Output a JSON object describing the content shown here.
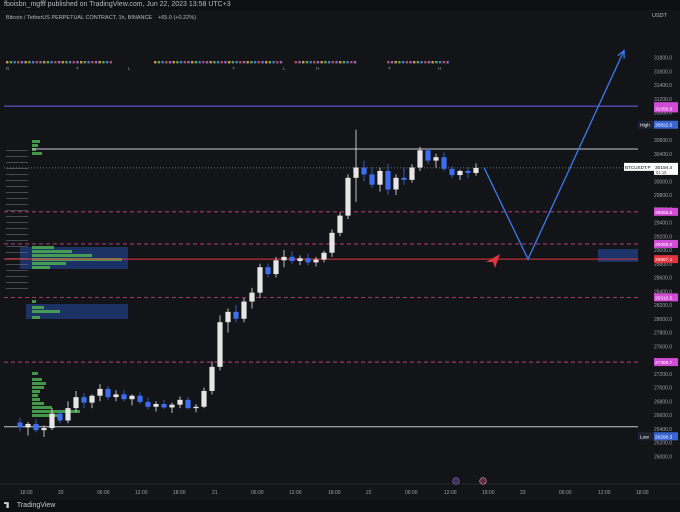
{
  "publish_line": "fboisbn_mgfff published on TradingView.com, Jun 22, 2023 13:58 UTC+3",
  "symbol_line": "Bitcoin / TetherUS PERPETUAL CONTRACT, 1h, BINANCE",
  "change_text": "+65.0 (+0.22%)",
  "footer_brand": "TradingView",
  "currency": "USDT",
  "colors": {
    "background": "#131417",
    "up": "#e6e6e6",
    "down": "#3b6ff0",
    "accent_arrow": "#3a7bf5",
    "red_line": "#e0353e",
    "magenta": "#d24bd6",
    "volume_profile": "#4caf50",
    "zone": "#1f3a78"
  },
  "chart_data": {
    "type": "candlestick",
    "symbol": "Bitcoin / TetherUS PERPETUAL CONTRACT",
    "interval": "1h",
    "exchange": "BINANCE",
    "ylim": [
      25800,
      32200
    ],
    "y_ticks": [
      26000,
      26200,
      26400,
      26600,
      26800,
      27000,
      27200,
      27400,
      27600,
      27800,
      28000,
      28200,
      28400,
      28600,
      28800,
      29000,
      29200,
      29400,
      29600,
      29800,
      30000,
      30200,
      30400,
      30600,
      30800,
      31000,
      31200,
      31400,
      31600,
      31800
    ],
    "x_ticks": [
      "18:00",
      "20",
      "06:00",
      "12:00",
      "18:00",
      "21",
      "06:00",
      "12:00",
      "18:00",
      "22",
      "06:00",
      "12:00",
      "18:00",
      "23",
      "06:00",
      "12:00",
      "18:00"
    ],
    "candles": [
      {
        "t": 0,
        "o": 26490,
        "h": 26560,
        "l": 26360,
        "c": 26420
      },
      {
        "t": 1,
        "o": 26420,
        "h": 26500,
        "l": 26300,
        "c": 26470
      },
      {
        "t": 2,
        "o": 26470,
        "h": 26540,
        "l": 26350,
        "c": 26380
      },
      {
        "t": 3,
        "o": 26380,
        "h": 26450,
        "l": 26280,
        "c": 26410
      },
      {
        "t": 4,
        "o": 26410,
        "h": 26700,
        "l": 26380,
        "c": 26620
      },
      {
        "t": 5,
        "o": 26620,
        "h": 26660,
        "l": 26480,
        "c": 26520
      },
      {
        "t": 6,
        "o": 26520,
        "h": 26800,
        "l": 26480,
        "c": 26700
      },
      {
        "t": 7,
        "o": 26700,
        "h": 26950,
        "l": 26640,
        "c": 26860
      },
      {
        "t": 8,
        "o": 26860,
        "h": 26920,
        "l": 26700,
        "c": 26780
      },
      {
        "t": 9,
        "o": 26780,
        "h": 26900,
        "l": 26700,
        "c": 26880
      },
      {
        "t": 10,
        "o": 26880,
        "h": 27050,
        "l": 26800,
        "c": 26980
      },
      {
        "t": 11,
        "o": 26980,
        "h": 27020,
        "l": 26820,
        "c": 26860
      },
      {
        "t": 12,
        "o": 26860,
        "h": 26960,
        "l": 26800,
        "c": 26900
      },
      {
        "t": 13,
        "o": 26900,
        "h": 26960,
        "l": 26800,
        "c": 26830
      },
      {
        "t": 14,
        "o": 26830,
        "h": 26900,
        "l": 26740,
        "c": 26880
      },
      {
        "t": 15,
        "o": 26880,
        "h": 26930,
        "l": 26760,
        "c": 26790
      },
      {
        "t": 16,
        "o": 26790,
        "h": 26850,
        "l": 26680,
        "c": 26720
      },
      {
        "t": 17,
        "o": 26720,
        "h": 26800,
        "l": 26650,
        "c": 26760
      },
      {
        "t": 18,
        "o": 26760,
        "h": 26820,
        "l": 26690,
        "c": 26710
      },
      {
        "t": 19,
        "o": 26710,
        "h": 26780,
        "l": 26630,
        "c": 26750
      },
      {
        "t": 20,
        "o": 26750,
        "h": 26870,
        "l": 26700,
        "c": 26820
      },
      {
        "t": 21,
        "o": 26820,
        "h": 26860,
        "l": 26680,
        "c": 26700
      },
      {
        "t": 22,
        "o": 26700,
        "h": 26760,
        "l": 26640,
        "c": 26720
      },
      {
        "t": 23,
        "o": 26720,
        "h": 27000,
        "l": 26700,
        "c": 26950
      },
      {
        "t": 24,
        "o": 26950,
        "h": 27380,
        "l": 26900,
        "c": 27300
      },
      {
        "t": 25,
        "o": 27300,
        "h": 28050,
        "l": 27250,
        "c": 27950
      },
      {
        "t": 26,
        "o": 27950,
        "h": 28150,
        "l": 27800,
        "c": 28100
      },
      {
        "t": 27,
        "o": 28100,
        "h": 28200,
        "l": 27950,
        "c": 28000
      },
      {
        "t": 28,
        "o": 28000,
        "h": 28300,
        "l": 27950,
        "c": 28250
      },
      {
        "t": 29,
        "o": 28250,
        "h": 28450,
        "l": 28150,
        "c": 28380
      },
      {
        "t": 30,
        "o": 28380,
        "h": 28800,
        "l": 28300,
        "c": 28750
      },
      {
        "t": 31,
        "o": 28750,
        "h": 28800,
        "l": 28600,
        "c": 28650
      },
      {
        "t": 32,
        "o": 28650,
        "h": 28900,
        "l": 28600,
        "c": 28850
      },
      {
        "t": 33,
        "o": 28850,
        "h": 29000,
        "l": 28750,
        "c": 28900
      },
      {
        "t": 34,
        "o": 28900,
        "h": 28980,
        "l": 28800,
        "c": 28840
      },
      {
        "t": 35,
        "o": 28840,
        "h": 28920,
        "l": 28780,
        "c": 28880
      },
      {
        "t": 36,
        "o": 28880,
        "h": 28950,
        "l": 28780,
        "c": 28820
      },
      {
        "t": 37,
        "o": 28820,
        "h": 28900,
        "l": 28760,
        "c": 28860
      },
      {
        "t": 38,
        "o": 28860,
        "h": 28990,
        "l": 28820,
        "c": 28960
      },
      {
        "t": 39,
        "o": 28960,
        "h": 29300,
        "l": 28900,
        "c": 29250
      },
      {
        "t": 40,
        "o": 29250,
        "h": 29550,
        "l": 29200,
        "c": 29500
      },
      {
        "t": 41,
        "o": 29500,
        "h": 30100,
        "l": 29450,
        "c": 30050
      },
      {
        "t": 42,
        "o": 30050,
        "h": 30750,
        "l": 29700,
        "c": 30200
      },
      {
        "t": 43,
        "o": 30200,
        "h": 30300,
        "l": 30000,
        "c": 30100
      },
      {
        "t": 44,
        "o": 30100,
        "h": 30200,
        "l": 29900,
        "c": 29950
      },
      {
        "t": 45,
        "o": 29950,
        "h": 30200,
        "l": 29850,
        "c": 30150
      },
      {
        "t": 46,
        "o": 30150,
        "h": 30250,
        "l": 29800,
        "c": 29880
      },
      {
        "t": 47,
        "o": 29880,
        "h": 30100,
        "l": 29800,
        "c": 30050
      },
      {
        "t": 48,
        "o": 30050,
        "h": 30200,
        "l": 29950,
        "c": 30020
      },
      {
        "t": 49,
        "o": 30020,
        "h": 30250,
        "l": 29980,
        "c": 30200
      },
      {
        "t": 50,
        "o": 30200,
        "h": 30500,
        "l": 30150,
        "c": 30450
      },
      {
        "t": 51,
        "o": 30450,
        "h": 30480,
        "l": 30250,
        "c": 30300
      },
      {
        "t": 52,
        "o": 30300,
        "h": 30400,
        "l": 30200,
        "c": 30350
      },
      {
        "t": 53,
        "o": 30350,
        "h": 30420,
        "l": 30150,
        "c": 30180
      },
      {
        "t": 54,
        "o": 30180,
        "h": 30220,
        "l": 30050,
        "c": 30090
      },
      {
        "t": 55,
        "o": 30090,
        "h": 30170,
        "l": 30020,
        "c": 30150
      },
      {
        "t": 56,
        "o": 30150,
        "h": 30200,
        "l": 30050,
        "c": 30120
      },
      {
        "t": 57,
        "o": 30120,
        "h": 30260,
        "l": 30080,
        "c": 30194
      }
    ],
    "price_labels": [
      {
        "label": "31091.9",
        "value": 31091.9,
        "color": "#d24bd6"
      },
      {
        "label": "31059.0",
        "value": 31059.0,
        "color": "#d24bd6"
      },
      {
        "label": "High",
        "value": 30822.0,
        "color": "#3a66d4",
        "text": "30822.0"
      },
      {
        "label": "BTCUSDT.P",
        "value": 30194.4,
        "color": "#ffffff",
        "text": "30194.4",
        "sub": "01:10"
      },
      {
        "label": "29555.5",
        "value": 29555.5,
        "color": "#d24bd6"
      },
      {
        "label": "29088.0",
        "value": 29088.0,
        "color": "#d24bd6"
      },
      {
        "label": "28867.1",
        "value": 28867.1,
        "color": "#e0353e"
      },
      {
        "label": "28310.5",
        "value": 28310.5,
        "color": "#d24bd6"
      },
      {
        "label": "27369.7",
        "value": 27369.7,
        "color": "#d24bd6"
      },
      {
        "label": "Low",
        "value": 26290.3,
        "color": "#3a66d4",
        "text": "26290.3"
      }
    ],
    "horizontal_lines": [
      {
        "value": 31091.9,
        "color": "#7a5cf0",
        "style": "solid"
      },
      {
        "value": 30470,
        "color": "#c8c8c8",
        "style": "solid"
      },
      {
        "value": 30194.4,
        "color": "#8a8d96",
        "style": "dotted"
      },
      {
        "value": 29555.5,
        "color": "#c9458e",
        "style": "dashed"
      },
      {
        "value": 29088.0,
        "color": "#c9458e",
        "style": "dashed"
      },
      {
        "value": 28867.1,
        "color": "#e0353e",
        "style": "solid"
      },
      {
        "value": 28310.5,
        "color": "#c9458e",
        "style": "dashed"
      },
      {
        "value": 27369.7,
        "color": "#c9458e",
        "style": "dashed"
      },
      {
        "value": 26430,
        "color": "#c8c8c8",
        "style": "solid"
      }
    ],
    "forecast_path": [
      {
        "x_step": 58,
        "price": 30200
      },
      {
        "x_step": 63.5,
        "price": 28867
      },
      {
        "x_step": 75.5,
        "price": 31900
      }
    ],
    "markers": [
      "R",
      "T",
      "L",
      "T",
      "L",
      "H",
      "T",
      "H"
    ]
  }
}
